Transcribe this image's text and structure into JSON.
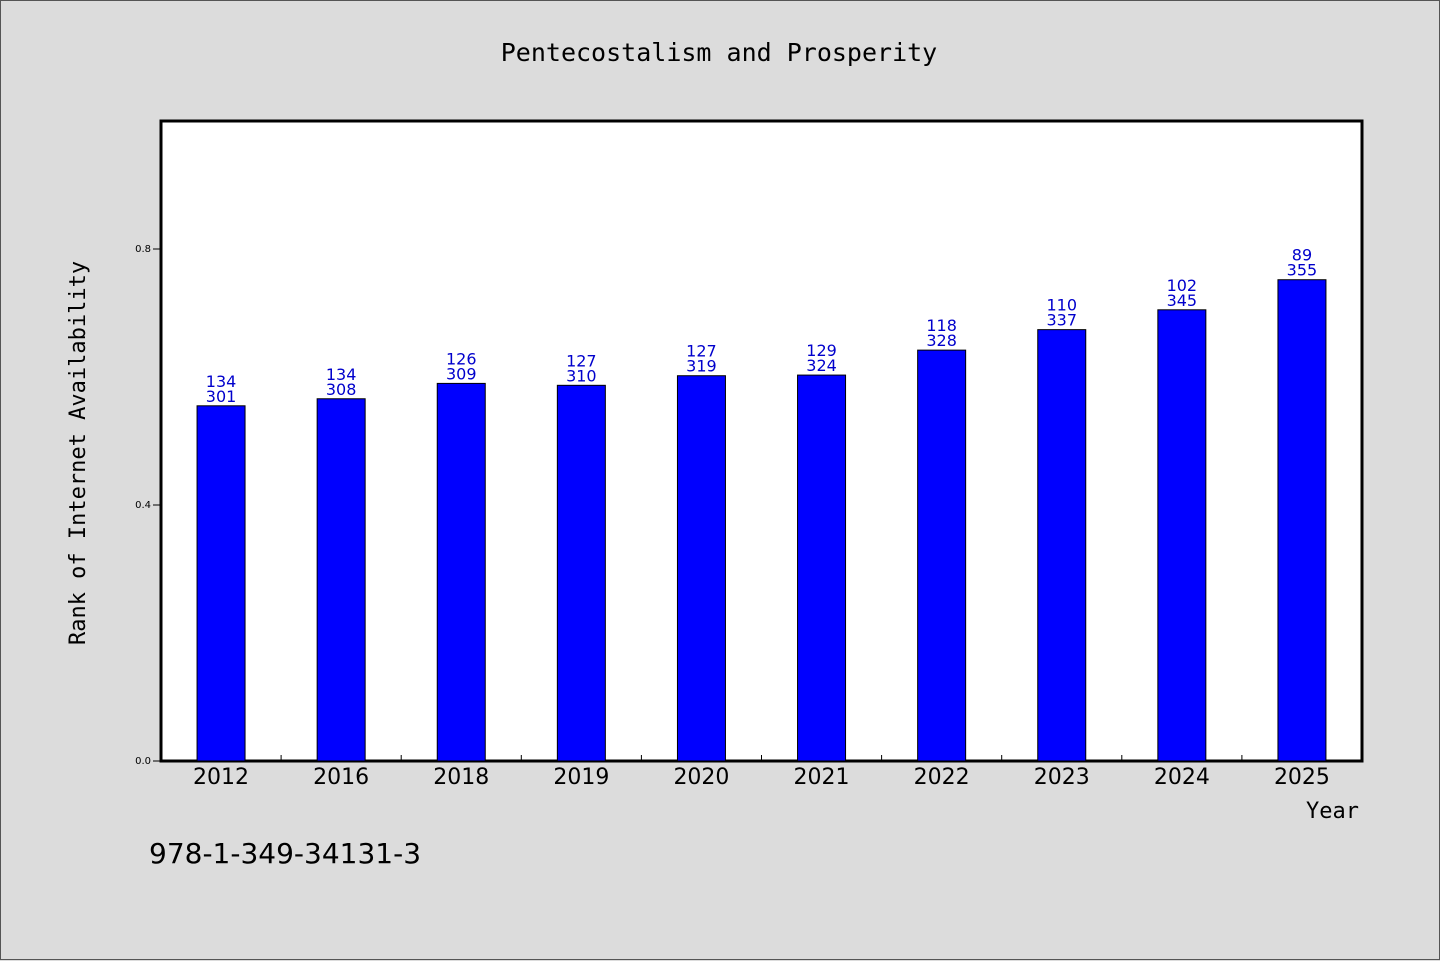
{
  "chart_data": {
    "type": "bar",
    "title": "Pentecostalism and Prosperity",
    "xlabel": "Year",
    "ylabel": "Rank of Internet Availability",
    "categories": [
      "2012",
      "2016",
      "2018",
      "2019",
      "2020",
      "2021",
      "2022",
      "2023",
      "2024",
      "2025"
    ],
    "values": [
      0.555,
      0.566,
      0.59,
      0.587,
      0.602,
      0.603,
      0.642,
      0.674,
      0.705,
      0.752
    ],
    "labels_top": [
      "134",
      "134",
      "126",
      "127",
      "127",
      "129",
      "118",
      "110",
      "102",
      "89"
    ],
    "labels_bottom": [
      "301",
      "308",
      "309",
      "310",
      "319",
      "324",
      "328",
      "337",
      "345",
      "355"
    ],
    "ylim": [
      0,
      1.0
    ],
    "yticks": [
      "0.0",
      "0.4",
      "0.8"
    ],
    "ytick_values": [
      0,
      0.4,
      0.8
    ],
    "bar_color": "#0000ff",
    "label_color": "#0000cc",
    "grid": false,
    "legend": "none"
  },
  "footer": {
    "isbn": "978-1-349-34131-3"
  }
}
